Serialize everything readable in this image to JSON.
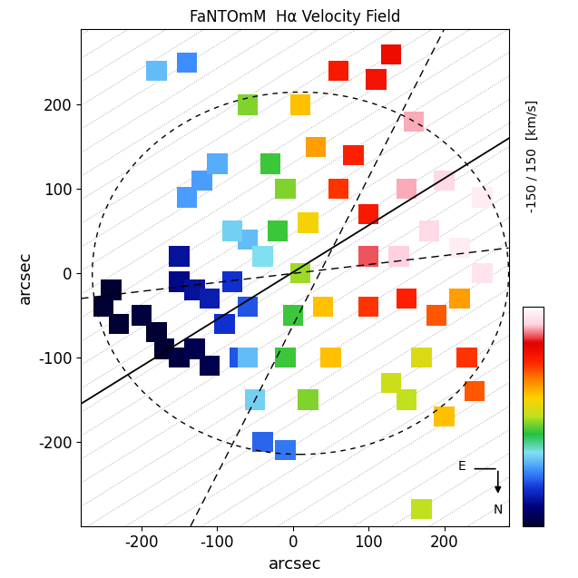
{
  "chart_data": {
    "type": "scatter",
    "title": "FaNTOmM  Hα Velocity Field",
    "x_label": "arcsec",
    "y_label": "arcsec",
    "xlim": [
      -280,
      285
    ],
    "ylim": [
      -300,
      290
    ],
    "xticks": [
      -200,
      -100,
      0,
      100,
      200
    ],
    "yticks": [
      -200,
      -100,
      0,
      100,
      200
    ],
    "points": {
      "x": [
        -250,
        -230,
        -200,
        -170,
        -150,
        -130,
        -110,
        -240,
        -180,
        -150,
        -130,
        -110,
        -150,
        -80,
        -60,
        -90,
        -70,
        -120,
        -140,
        -100,
        -60,
        -40,
        -80,
        -60,
        -50,
        -40,
        -10,
        -180,
        -140,
        -20,
        -10,
        -30,
        -60,
        0,
        -10,
        20,
        150,
        170,
        130,
        10,
        170,
        10,
        30,
        20,
        40,
        50,
        220,
        200,
        60,
        100,
        80,
        130,
        110,
        60,
        230,
        190,
        240,
        150,
        100,
        150,
        180,
        220,
        250,
        200,
        160,
        140,
        100,
        250
      ],
      "y": [
        -40,
        -60,
        -50,
        -90,
        -100,
        -90,
        -110,
        -20,
        -70,
        -10,
        -20,
        -30,
        20,
        -10,
        -40,
        -60,
        -100,
        110,
        90,
        130,
        40,
        20,
        50,
        -100,
        -150,
        -200,
        -210,
        240,
        250,
        50,
        100,
        130,
        200,
        -50,
        -100,
        -150,
        -150,
        -100,
        -130,
        0,
        -280,
        200,
        150,
        60,
        -40,
        -100,
        -30,
        -170,
        100,
        70,
        140,
        260,
        230,
        240,
        -100,
        -50,
        -140,
        -30,
        -40,
        100,
        50,
        30,
        0,
        110,
        180,
        20,
        20,
        90
      ],
      "velocity": [
        -150,
        -150,
        -145,
        -150,
        -145,
        -140,
        -140,
        -150,
        -150,
        -120,
        -115,
        -110,
        -115,
        -100,
        -90,
        -100,
        -90,
        -70,
        -70,
        -65,
        -60,
        -50,
        -55,
        -60,
        -55,
        -85,
        -80,
        -60,
        -75,
        -20,
        -10,
        -20,
        -10,
        -20,
        -20,
        -10,
        0,
        10,
        5,
        -5,
        0,
        30,
        40,
        20,
        30,
        30,
        40,
        30,
        70,
        80,
        75,
        90,
        85,
        80,
        70,
        60,
        60,
        75,
        70,
        120,
        130,
        140,
        135,
        130,
        120,
        125,
        110,
        140
      ]
    },
    "colorbar": {
      "range": [
        -150,
        150
      ],
      "label": "-150 / 150  [km/s]"
    },
    "major_axis": {
      "x": [
        -280,
        285
      ],
      "y": [
        -155,
        160
      ]
    },
    "sector_lines": [
      {
        "x": [
          -280,
          285
        ],
        "y": [
          -30,
          30
        ]
      },
      {
        "x": [
          -135,
          200
        ],
        "y": [
          -300,
          290
        ]
      }
    ],
    "ellipse": {
      "center": [
        10,
        0
      ],
      "width": 550,
      "height": 430
    },
    "compass": {
      "east": "E",
      "north": "N"
    }
  }
}
